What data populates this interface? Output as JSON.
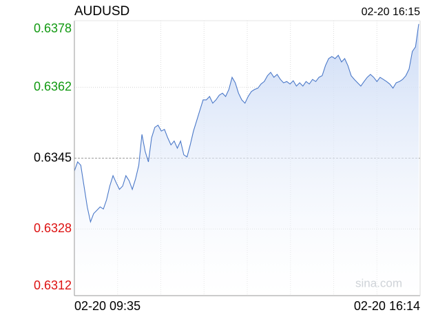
{
  "chart_data": {
    "type": "line",
    "title": "AUDUSD",
    "timestamp": "02-20 16:15",
    "watermark": "sina.com",
    "x_labels": [
      "02-20 09:35",
      "02-20 16:14"
    ],
    "ylim": [
      0.6312,
      0.6378
    ],
    "yticks": [
      0.6312,
      0.6328,
      0.6345,
      0.6362,
      0.6378
    ],
    "ytick_colors": [
      "#dd1111",
      "#dd1111",
      "#000000",
      "#119911",
      "#119911"
    ],
    "grid": true,
    "series": [
      {
        "name": "AUDUSD",
        "color": "#4a78c8",
        "values": [
          0.63419,
          0.63441,
          0.63433,
          0.63383,
          0.63333,
          0.63297,
          0.63317,
          0.63325,
          0.63333,
          0.63328,
          0.6335,
          0.63383,
          0.63408,
          0.63391,
          0.63375,
          0.63383,
          0.63408,
          0.63396,
          0.63375,
          0.634,
          0.63433,
          0.63507,
          0.63466,
          0.63441,
          0.63499,
          0.63524,
          0.63529,
          0.63515,
          0.63519,
          0.63499,
          0.63482,
          0.63491,
          0.63474,
          0.63491,
          0.63458,
          0.63453,
          0.63482,
          0.63515,
          0.6354,
          0.63565,
          0.6359,
          0.6359,
          0.63598,
          0.63582,
          0.6359,
          0.63601,
          0.63606,
          0.63598,
          0.63615,
          0.63644,
          0.63631,
          0.63606,
          0.6359,
          0.63582,
          0.63598,
          0.6361,
          0.63615,
          0.63618,
          0.63628,
          0.63634,
          0.63648,
          0.63656,
          0.63644,
          0.63651,
          0.63639,
          0.63631,
          0.63634,
          0.63628,
          0.63636,
          0.63623,
          0.63631,
          0.63623,
          0.63634,
          0.63628,
          0.63639,
          0.63634,
          0.63644,
          0.63648,
          0.63672,
          0.63689,
          0.63694,
          0.63689,
          0.63697,
          0.63681,
          0.63689,
          0.63672,
          0.63648,
          0.63639,
          0.63631,
          0.63623,
          0.63634,
          0.63644,
          0.63651,
          0.63644,
          0.63634,
          0.63644,
          0.63639,
          0.63634,
          0.63628,
          0.63618,
          0.63631,
          0.63634,
          0.63639,
          0.63648,
          0.63664,
          0.63706,
          0.63717,
          0.63772
        ]
      }
    ]
  }
}
